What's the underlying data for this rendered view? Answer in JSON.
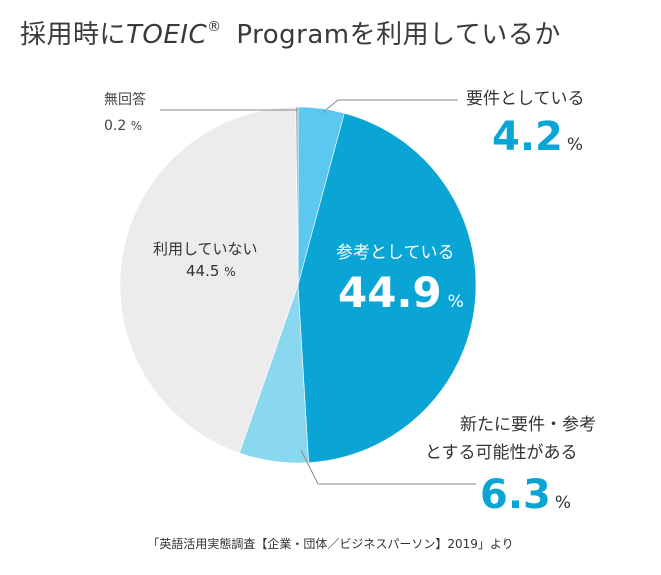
{
  "title": {
    "prefix": "採用時に",
    "brand": "TOEIC",
    "reg": "®",
    "suffix": " Programを利用しているか"
  },
  "chart_data": {
    "type": "pie",
    "start": "12 o'clock",
    "direction": "clockwise",
    "slices": [
      {
        "label": "要件としている",
        "value": 4.2,
        "color": "#5bc8ef"
      },
      {
        "label": "参考としている",
        "value": 44.9,
        "color": "#0aa5d4"
      },
      {
        "label": "新たに要件・参考とする可能性がある",
        "value": 6.3,
        "color": "#8ad8f0"
      },
      {
        "label": "利用していない",
        "value": 44.5,
        "color": "#ececec"
      },
      {
        "label": "無回答",
        "value": 0.2,
        "color": "#a8a8a8"
      }
    ]
  },
  "labels": {
    "requirement": {
      "text": "要件としている",
      "value": "4.2",
      "unit": "%"
    },
    "reference": {
      "text": "参考としている",
      "value": "44.9",
      "unit": "%"
    },
    "possible": {
      "line1": "新たに要件・参考",
      "line2": "とする可能性がある",
      "value": "6.3",
      "unit": "%"
    },
    "not_used": {
      "text": "利用していない",
      "value": "44.5",
      "unit": "%"
    },
    "no_answer": {
      "text": "無回答",
      "value": "0.2",
      "unit": "%"
    }
  },
  "source": "「英語活用実態調査【企業・団体／ビジネスパーソン】2019」より"
}
